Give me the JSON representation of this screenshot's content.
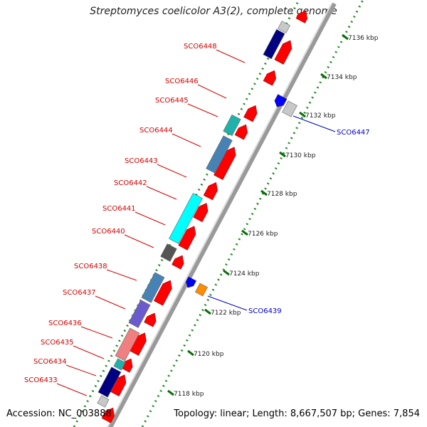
{
  "title": "Streptomyces coelicolor A3(2), complete genome",
  "accession": "Accession: NC_003888",
  "summary": "Topology: linear; Length: 8,667,507 bp; Genes: 7,854",
  "colors": {
    "gene_label_forward": "#d40000",
    "gene_label_reverse": "#0000c8",
    "forward_gene": "#ff0000",
    "backbone": "#999999",
    "ruler_dots": "#1f8a1f"
  },
  "scale_ticks": [
    "7118 kbp",
    "7120 kbp",
    "7122 kbp",
    "7124 kbp",
    "7126 kbp",
    "7128 kbp",
    "7130 kbp",
    "7132 kbp",
    "7134 kbp",
    "7136 kbp"
  ],
  "gene_labels_left": [
    "SCO6448",
    "SCO6446",
    "SCO6445",
    "SCO6444",
    "SCO6443",
    "SCO6442",
    "SCO6441",
    "SCO6440",
    "SCO6438",
    "SCO6437",
    "SCO6436",
    "SCO6435",
    "SCO6434",
    "SCO6433"
  ],
  "gene_labels_right": [
    "SCO6447",
    "SCO6439"
  ]
}
